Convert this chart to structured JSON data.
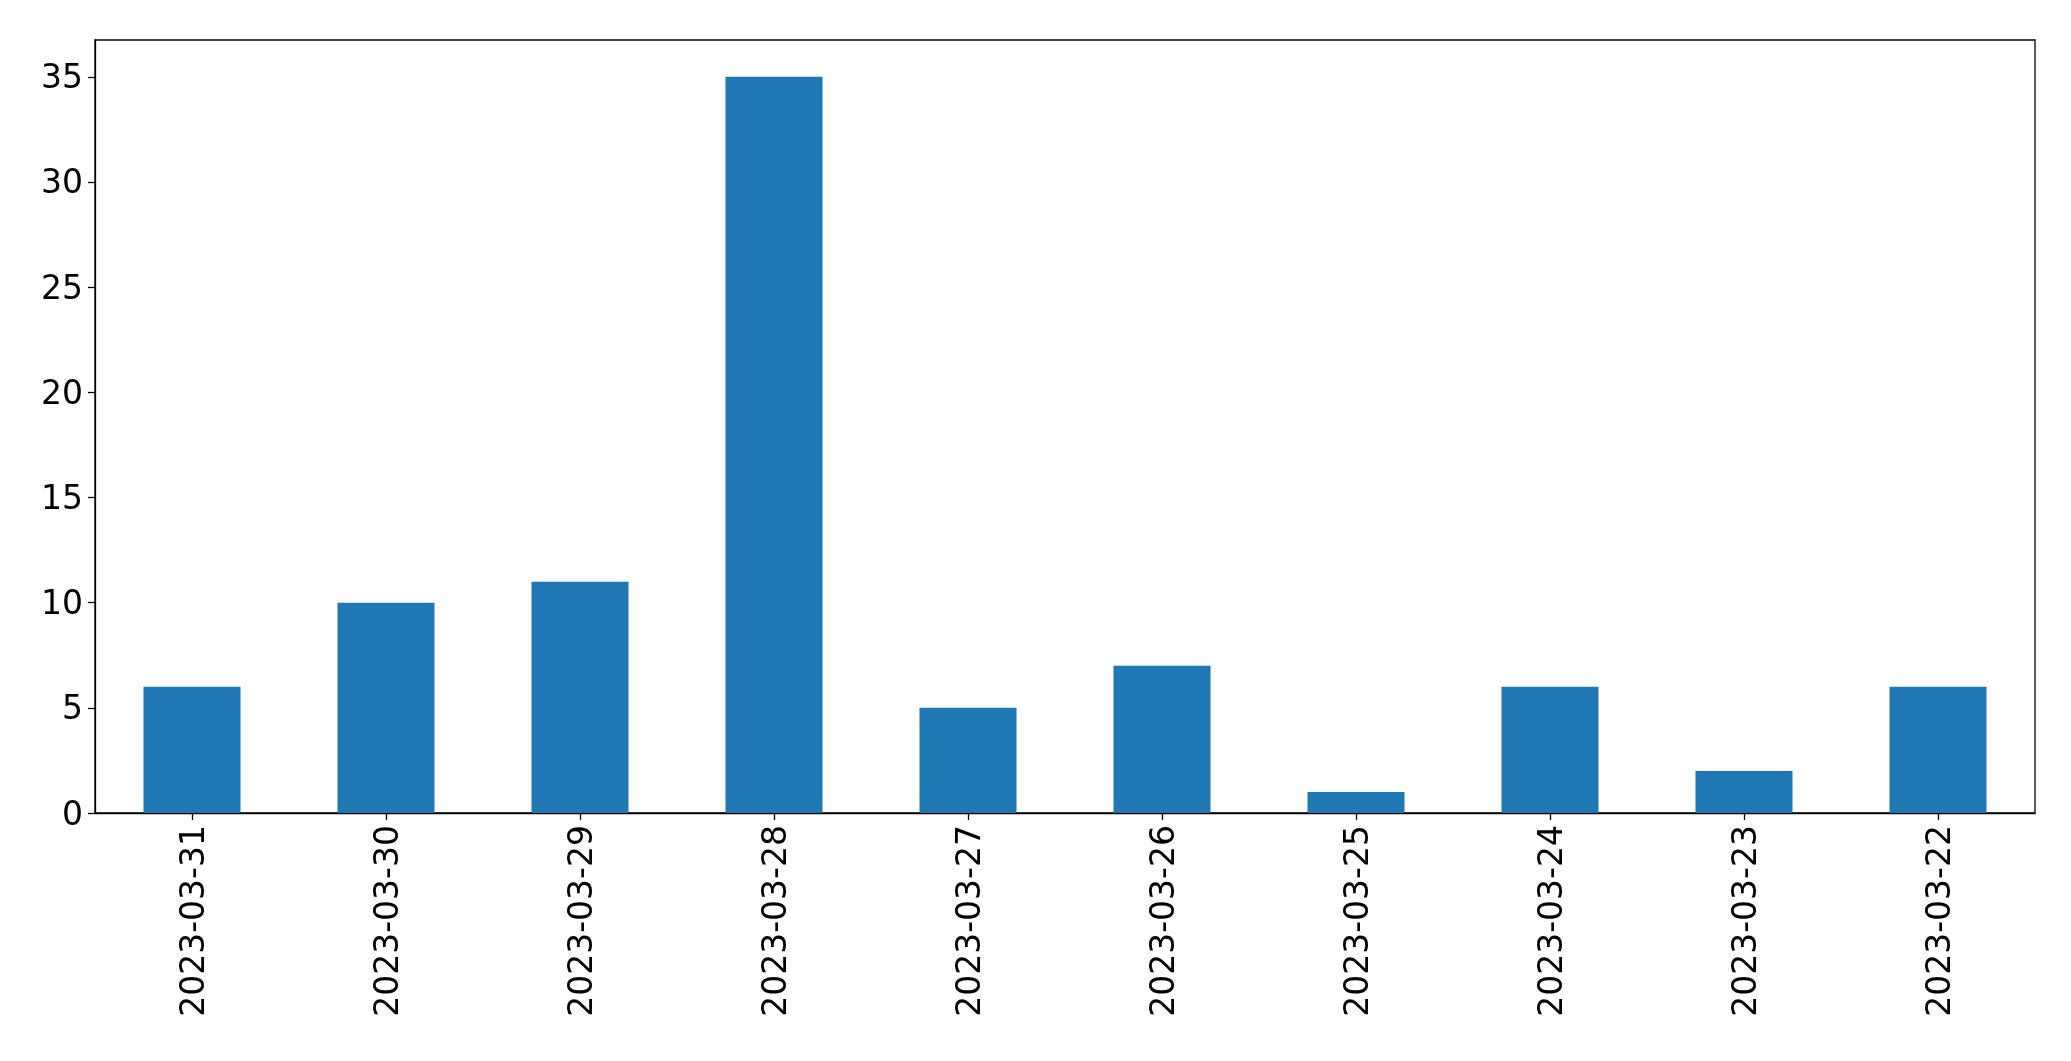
{
  "chart_data": {
    "type": "bar",
    "categories": [
      "2023-03-31",
      "2023-03-30",
      "2023-03-29",
      "2023-03-28",
      "2023-03-27",
      "2023-03-26",
      "2023-03-25",
      "2023-03-24",
      "2023-03-23",
      "2023-03-22"
    ],
    "values": [
      6,
      10,
      11,
      35,
      5,
      7,
      1,
      6,
      2,
      6
    ],
    "color": "#1f77b4",
    "ylim": [
      0,
      36.75
    ],
    "yticks": [
      0,
      5,
      10,
      15,
      20,
      25,
      30,
      35
    ]
  }
}
